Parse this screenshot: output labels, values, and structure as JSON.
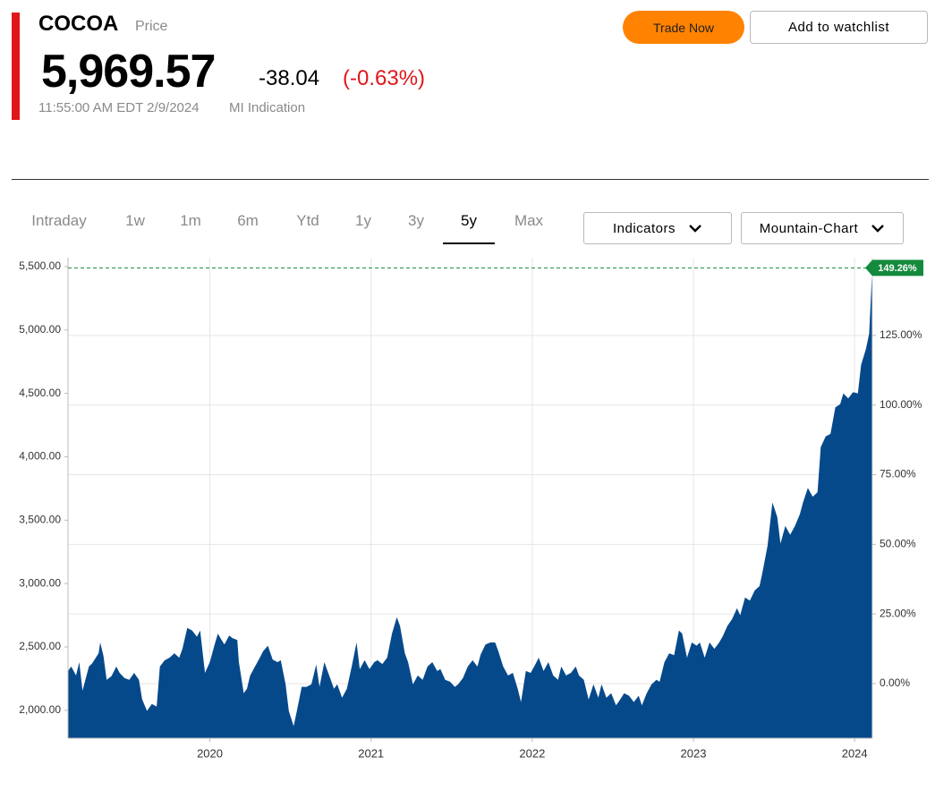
{
  "header": {
    "symbol": "COCOA",
    "symbol_label": "Price",
    "price": "5,969.57",
    "change": "-38.04",
    "change_percent": "(-0.63%)",
    "timestamp": "11:55:00 AM EDT 2/9/2024",
    "source": "MI Indication"
  },
  "buttons": {
    "trade": "Trade Now",
    "watchlist": "Add to watchlist"
  },
  "tabs": [
    "Intraday",
    "1w",
    "1m",
    "6m",
    "Ytd",
    "1y",
    "3y",
    "5y",
    "Max"
  ],
  "selected_tab": 7,
  "dropdowns": [
    "Indicators",
    "Mountain-Chart"
  ],
  "chart_data": {
    "type": "area",
    "color": "#06498b",
    "grid": true,
    "x": [
      2019.12,
      2019.14,
      2019.17,
      2019.19,
      2019.21,
      2019.25,
      2019.27,
      2019.31,
      2019.32,
      2019.34,
      2019.36,
      2019.39,
      2019.42,
      2019.44,
      2019.47,
      2019.5,
      2019.53,
      2019.56,
      2019.58,
      2019.61,
      2019.64,
      2019.67,
      2019.69,
      2019.72,
      2019.75,
      2019.78,
      2019.81,
      2019.83,
      2019.86,
      2019.89,
      2019.92,
      2019.94,
      2019.97,
      2020.0,
      2020.03,
      2020.05,
      2020.07,
      2020.09,
      2020.12,
      2020.14,
      2020.17,
      2020.18,
      2020.21,
      2020.23,
      2020.25,
      2020.28,
      2020.31,
      2020.33,
      2020.36,
      2020.39,
      2020.42,
      2020.44,
      2020.47,
      2020.49,
      2020.52,
      2020.54,
      2020.57,
      2020.6,
      2020.63,
      2020.66,
      2020.68,
      2020.71,
      2020.74,
      2020.77,
      2020.79,
      2020.82,
      2020.85,
      2020.88,
      2020.91,
      2020.93,
      2020.96,
      2020.99,
      2021.02,
      2021.04,
      2021.07,
      2021.1,
      2021.13,
      2021.16,
      2021.18,
      2021.21,
      2021.23,
      2021.26,
      2021.29,
      2021.32,
      2021.35,
      2021.38,
      2021.41,
      2021.43,
      2021.46,
      2021.49,
      2021.52,
      2021.54,
      2021.57,
      2021.6,
      2021.63,
      2021.66,
      2021.68,
      2021.71,
      2021.74,
      2021.77,
      2021.79,
      2021.82,
      2021.85,
      2021.88,
      2021.91,
      2021.93,
      2021.96,
      2021.99,
      2022.02,
      2022.04,
      2022.07,
      2022.1,
      2022.13,
      2022.16,
      2022.18,
      2022.21,
      2022.24,
      2022.27,
      2022.29,
      2022.32,
      2022.35,
      2022.38,
      2022.41,
      2022.43,
      2022.46,
      2022.49,
      2022.52,
      2022.54,
      2022.57,
      2022.6,
      2022.63,
      2022.66,
      2022.68,
      2022.71,
      2022.74,
      2022.77,
      2022.79,
      2022.82,
      2022.85,
      2022.88,
      2022.91,
      2022.93,
      2022.96,
      2022.99,
      2023.02,
      2023.04,
      2023.07,
      2023.1,
      2023.13,
      2023.16,
      2023.18,
      2023.21,
      2023.24,
      2023.27,
      2023.29,
      2023.32,
      2023.35,
      2023.38,
      2023.41,
      2023.43,
      2023.46,
      2023.49,
      2023.52,
      2023.54,
      2023.57,
      2023.6,
      2023.63,
      2023.66,
      2023.68,
      2023.71,
      2023.74,
      2023.77,
      2023.79,
      2023.82,
      2023.85,
      2023.88,
      2023.91,
      2023.93,
      2023.96,
      2023.99,
      2024.02,
      2024.04,
      2024.07,
      2024.09,
      2024.11
    ],
    "values": [
      2310,
      2345,
      2275,
      2380,
      2155,
      2345,
      2370,
      2450,
      2535,
      2430,
      2240,
      2270,
      2345,
      2295,
      2255,
      2240,
      2295,
      2240,
      2085,
      1995,
      2050,
      2030,
      2345,
      2395,
      2415,
      2450,
      2415,
      2485,
      2650,
      2630,
      2580,
      2630,
      2295,
      2380,
      2520,
      2605,
      2560,
      2520,
      2590,
      2570,
      2555,
      2380,
      2135,
      2170,
      2275,
      2345,
      2415,
      2465,
      2510,
      2400,
      2380,
      2395,
      2205,
      1995,
      1875,
      1995,
      2185,
      2185,
      2205,
      2360,
      2185,
      2380,
      2275,
      2170,
      2205,
      2100,
      2170,
      2345,
      2535,
      2325,
      2395,
      2325,
      2380,
      2395,
      2365,
      2415,
      2605,
      2735,
      2665,
      2450,
      2380,
      2205,
      2275,
      2240,
      2345,
      2380,
      2310,
      2325,
      2240,
      2225,
      2185,
      2205,
      2255,
      2345,
      2395,
      2345,
      2440,
      2520,
      2535,
      2535,
      2465,
      2345,
      2275,
      2295,
      2170,
      2065,
      2310,
      2295,
      2365,
      2415,
      2310,
      2380,
      2275,
      2240,
      2345,
      2275,
      2295,
      2345,
      2275,
      2240,
      2085,
      2205,
      2100,
      2205,
      2100,
      2135,
      2040,
      2075,
      2135,
      2115,
      2065,
      2115,
      2040,
      2135,
      2205,
      2240,
      2225,
      2380,
      2450,
      2435,
      2630,
      2605,
      2415,
      2535,
      2510,
      2535,
      2415,
      2535,
      2485,
      2535,
      2580,
      2665,
      2720,
      2805,
      2750,
      2890,
      2865,
      2945,
      2980,
      3100,
      3300,
      3640,
      3525,
      3315,
      3455,
      3385,
      3455,
      3545,
      3640,
      3755,
      3685,
      3720,
      4075,
      4160,
      4180,
      4390,
      4415,
      4500,
      4460,
      4510,
      4500,
      4725,
      4850,
      4970,
      5500
    ],
    "xlim": [
      2019.12,
      2024.11
    ],
    "xticks": [
      2020,
      2021,
      2022,
      2023,
      2024
    ],
    "ylim": [
      1780,
      5570
    ],
    "yticks": [
      {
        "value": 2000,
        "label": "2,000.00"
      },
      {
        "value": 2500,
        "label": "2,500.00"
      },
      {
        "value": 3000,
        "label": "3,000.00"
      },
      {
        "value": 3500,
        "label": "3,500.00"
      },
      {
        "value": 4000,
        "label": "4,000.00"
      },
      {
        "value": 4500,
        "label": "4,500.00"
      },
      {
        "value": 5000,
        "label": "5,000.00"
      },
      {
        "value": 5500,
        "label": "5,500.00"
      }
    ],
    "y2lim": [
      -19.6,
      152.9
    ],
    "y2ticks": [
      {
        "value": 0,
        "label": "0.00%"
      },
      {
        "value": 25,
        "label": "25.00%"
      },
      {
        "value": 50,
        "label": "50.00%"
      },
      {
        "value": 75,
        "label": "75.00%"
      },
      {
        "value": 100,
        "label": "100.00%"
      },
      {
        "value": 125,
        "label": "125.00%"
      }
    ],
    "annotation": {
      "value": 149.26,
      "label": "149.26%",
      "axis": "y2",
      "color": "#138a3c"
    }
  }
}
